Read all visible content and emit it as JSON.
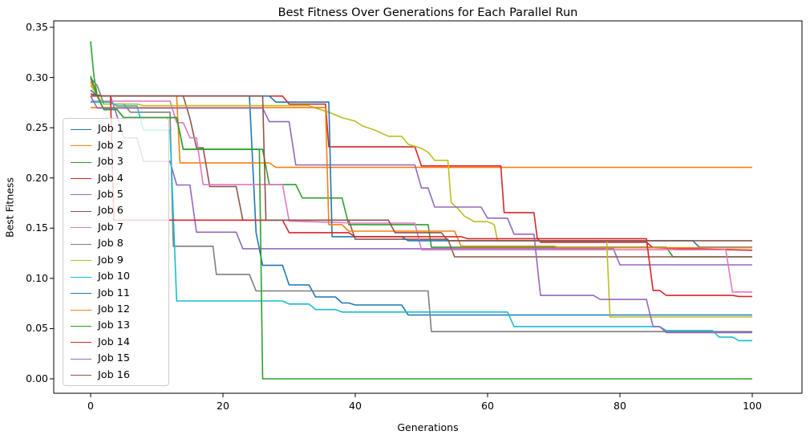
{
  "figure": {
    "title": "Best Fitness Over Generations for Each Parallel Run",
    "xlabel": "Generations",
    "ylabel": "Best Fitness"
  },
  "chart_data": {
    "type": "line",
    "title": "Best Fitness Over Generations for Each Parallel Run",
    "xlabel": "Generations",
    "ylabel": "Best Fitness",
    "xlim": [
      -5.6,
      107.6
    ],
    "ylim": [
      -0.0145,
      0.3565
    ],
    "xticks": [
      0,
      20,
      40,
      60,
      80,
      100
    ],
    "yticks": [
      0.0,
      0.05,
      0.1,
      0.15,
      0.2,
      0.25,
      0.3,
      0.35
    ],
    "ytick_labels": [
      "0.00",
      "0.05",
      "0.10",
      "0.15",
      "0.20",
      "0.25",
      "0.30",
      "0.35"
    ],
    "grid": false,
    "legend_position": "center left",
    "series": [
      {
        "name": "Job 1",
        "color": "#1f77b4",
        "points": [
          [
            0,
            0.2995
          ],
          [
            1,
            0.2815
          ],
          [
            24,
            0.2815
          ],
          [
            25,
            0.1455
          ],
          [
            26,
            0.113
          ],
          [
            29,
            0.113
          ],
          [
            30,
            0.0935
          ],
          [
            33,
            0.0935
          ],
          [
            34,
            0.0815
          ],
          [
            37,
            0.0815
          ],
          [
            38,
            0.0755
          ],
          [
            39,
            0.0755
          ],
          [
            40,
            0.0735
          ],
          [
            47,
            0.0735
          ],
          [
            48,
            0.0635
          ],
          [
            100,
            0.0635
          ]
        ]
      },
      {
        "name": "Job 2",
        "color": "#ff7f0e",
        "points": [
          [
            0,
            0.2958
          ],
          [
            1,
            0.2815
          ],
          [
            13,
            0.2815
          ],
          [
            13.5,
            0.215
          ],
          [
            27,
            0.215
          ],
          [
            28,
            0.2105
          ],
          [
            100,
            0.2105
          ]
        ]
      },
      {
        "name": "Job 3",
        "color": "#2ca02c",
        "points": [
          [
            0,
            0.336
          ],
          [
            0.5,
            0.3014
          ],
          [
            1,
            0.2815
          ],
          [
            2,
            0.268
          ],
          [
            4,
            0.268
          ],
          [
            5,
            0.26
          ],
          [
            13,
            0.26
          ],
          [
            14,
            0.2285
          ],
          [
            26,
            0.2285
          ],
          [
            27,
            0.1935
          ],
          [
            31,
            0.1935
          ],
          [
            32,
            0.18
          ],
          [
            38,
            0.18
          ],
          [
            39,
            0.1535
          ],
          [
            51,
            0.1535
          ],
          [
            51.5,
            0.131
          ],
          [
            87,
            0.131
          ],
          [
            88,
            0.1215
          ],
          [
            100,
            0.1215
          ]
        ]
      },
      {
        "name": "Job 4",
        "color": "#d62728",
        "points": [
          [
            0,
            0.2835
          ],
          [
            2,
            0.2815
          ],
          [
            29,
            0.2815
          ],
          [
            30,
            0.2735
          ],
          [
            35.5,
            0.2735
          ],
          [
            36,
            0.231
          ],
          [
            49,
            0.231
          ],
          [
            50,
            0.212
          ],
          [
            62,
            0.212
          ],
          [
            62.5,
            0.1655
          ],
          [
            67,
            0.1655
          ],
          [
            67.5,
            0.14
          ],
          [
            68,
            0.136
          ],
          [
            84,
            0.136
          ],
          [
            85,
            0.1305
          ],
          [
            90,
            0.1295
          ],
          [
            100,
            0.128
          ]
        ]
      },
      {
        "name": "Job 5",
        "color": "#9467bd",
        "points": [
          [
            0,
            0.2815
          ],
          [
            3,
            0.2815
          ],
          [
            4,
            0.2615
          ],
          [
            5,
            0.24
          ],
          [
            7,
            0.24
          ],
          [
            8,
            0.2165
          ],
          [
            12,
            0.2165
          ],
          [
            13,
            0.193
          ],
          [
            15,
            0.193
          ],
          [
            16,
            0.146
          ],
          [
            22,
            0.146
          ],
          [
            23,
            0.1295
          ],
          [
            79,
            0.1295
          ],
          [
            80,
            0.1135
          ],
          [
            100,
            0.1135
          ]
        ]
      },
      {
        "name": "Job 6",
        "color": "#8c564b",
        "points": [
          [
            0,
            0.2815
          ],
          [
            14,
            0.2815
          ],
          [
            15,
            0.2595
          ],
          [
            16,
            0.23
          ],
          [
            17,
            0.23
          ],
          [
            18,
            0.1915
          ],
          [
            22,
            0.1915
          ],
          [
            23,
            0.158
          ],
          [
            39,
            0.158
          ],
          [
            40,
            0.139
          ],
          [
            54,
            0.139
          ],
          [
            55,
            0.1215
          ],
          [
            100,
            0.1215
          ]
        ]
      },
      {
        "name": "Job 7",
        "color": "#e377c2",
        "points": [
          [
            0,
            0.2765
          ],
          [
            12,
            0.2765
          ],
          [
            13,
            0.255
          ],
          [
            14,
            0.255
          ],
          [
            15,
            0.24
          ],
          [
            16,
            0.24
          ],
          [
            17,
            0.1935
          ],
          [
            29,
            0.1935
          ],
          [
            30,
            0.157
          ],
          [
            40,
            0.155
          ],
          [
            49,
            0.155
          ],
          [
            50,
            0.1285
          ],
          [
            96,
            0.1285
          ],
          [
            97,
            0.0865
          ],
          [
            100,
            0.0865
          ]
        ]
      },
      {
        "name": "Job 8",
        "color": "#7f7f7f",
        "points": [
          [
            0,
            0.2995
          ],
          [
            1,
            0.2918
          ],
          [
            2,
            0.2735
          ],
          [
            5,
            0.2735
          ],
          [
            6,
            0.2655
          ],
          [
            12,
            0.2655
          ],
          [
            12.5,
            0.132
          ],
          [
            18.5,
            0.132
          ],
          [
            19,
            0.104
          ],
          [
            24,
            0.104
          ],
          [
            25,
            0.0875
          ],
          [
            51,
            0.0875
          ],
          [
            51.5,
            0.047
          ],
          [
            100,
            0.047
          ]
        ]
      },
      {
        "name": "Job 9",
        "color": "#bcbd22",
        "points": [
          [
            0,
            0.2925
          ],
          [
            1,
            0.2815
          ],
          [
            2,
            0.2735
          ],
          [
            7,
            0.2735
          ],
          [
            8,
            0.272
          ],
          [
            33,
            0.272
          ],
          [
            34,
            0.2695
          ],
          [
            36,
            0.2655
          ],
          [
            38,
            0.26
          ],
          [
            40,
            0.2565
          ],
          [
            41,
            0.252
          ],
          [
            43,
            0.2475
          ],
          [
            45,
            0.2415
          ],
          [
            47,
            0.2415
          ],
          [
            48,
            0.2335
          ],
          [
            50,
            0.2295
          ],
          [
            51,
            0.2255
          ],
          [
            52,
            0.2175
          ],
          [
            54,
            0.2175
          ],
          [
            54.5,
            0.1755
          ],
          [
            55.5,
            0.1695
          ],
          [
            56.5,
            0.162
          ],
          [
            58,
            0.1565
          ],
          [
            60,
            0.1565
          ],
          [
            61,
            0.1535
          ],
          [
            61.5,
            0.1375
          ],
          [
            78,
            0.1375
          ],
          [
            78.5,
            0.0615
          ],
          [
            100,
            0.0615
          ]
        ]
      },
      {
        "name": "Job 10",
        "color": "#17becf",
        "points": [
          [
            0,
            0.2755
          ],
          [
            3,
            0.2755
          ],
          [
            4,
            0.2718
          ],
          [
            7,
            0.2718
          ],
          [
            8,
            0.2475
          ],
          [
            12,
            0.2475
          ],
          [
            13,
            0.0775
          ],
          [
            29,
            0.0775
          ],
          [
            30,
            0.0745
          ],
          [
            33,
            0.0745
          ],
          [
            34,
            0.069
          ],
          [
            37,
            0.069
          ],
          [
            38,
            0.0665
          ],
          [
            63,
            0.0665
          ],
          [
            64,
            0.052
          ],
          [
            86,
            0.052
          ],
          [
            87,
            0.048
          ],
          [
            94,
            0.048
          ],
          [
            95,
            0.0415
          ],
          [
            97,
            0.0415
          ],
          [
            98,
            0.038
          ],
          [
            100,
            0.038
          ]
        ]
      },
      {
        "name": "Job 11",
        "color": "#1f77b4",
        "points": [
          [
            0,
            0.2875
          ],
          [
            1,
            0.2815
          ],
          [
            27,
            0.2815
          ],
          [
            28,
            0.2755
          ],
          [
            36,
            0.2755
          ],
          [
            36.5,
            0.1415
          ],
          [
            47,
            0.1415
          ],
          [
            48,
            0.1375
          ],
          [
            91,
            0.1375
          ],
          [
            92,
            0.131
          ],
          [
            100,
            0.131
          ]
        ]
      },
      {
        "name": "Job 12",
        "color": "#ff7f0e",
        "points": [
          [
            0,
            0.27
          ],
          [
            35.5,
            0.27
          ],
          [
            36,
            0.1535
          ],
          [
            38,
            0.1535
          ],
          [
            39,
            0.147
          ],
          [
            55,
            0.147
          ],
          [
            56,
            0.132
          ],
          [
            70,
            0.132
          ],
          [
            71,
            0.1305
          ],
          [
            100,
            0.1305
          ]
        ]
      },
      {
        "name": "Job 13",
        "color": "#2ca02c",
        "points": [
          [
            0,
            0.3014
          ],
          [
            1,
            0.2815
          ],
          [
            2,
            0.268
          ],
          [
            4,
            0.268
          ],
          [
            5,
            0.26
          ],
          [
            13,
            0.26
          ],
          [
            14,
            0.2285
          ],
          [
            25.5,
            0.2285
          ],
          [
            26,
            0.0
          ],
          [
            100,
            0.0
          ]
        ]
      },
      {
        "name": "Job 14",
        "color": "#d62728",
        "points": [
          [
            0,
            0.2815
          ],
          [
            3,
            0.2815
          ],
          [
            3.5,
            0.158
          ],
          [
            29,
            0.158
          ],
          [
            30,
            0.1455
          ],
          [
            39,
            0.1455
          ],
          [
            40,
            0.1415
          ],
          [
            56,
            0.1415
          ],
          [
            57,
            0.1395
          ],
          [
            84,
            0.1395
          ],
          [
            85,
            0.088
          ],
          [
            86,
            0.088
          ],
          [
            87,
            0.083
          ],
          [
            97,
            0.083
          ],
          [
            98,
            0.082
          ],
          [
            100,
            0.082
          ]
        ]
      },
      {
        "name": "Job 15",
        "color": "#9467bd",
        "points": [
          [
            0,
            0.2815
          ],
          [
            1,
            0.2695
          ],
          [
            26,
            0.2695
          ],
          [
            27,
            0.256
          ],
          [
            30,
            0.256
          ],
          [
            31,
            0.213
          ],
          [
            49,
            0.213
          ],
          [
            50,
            0.19
          ],
          [
            51,
            0.19
          ],
          [
            52,
            0.171
          ],
          [
            59,
            0.171
          ],
          [
            60,
            0.16
          ],
          [
            63,
            0.16
          ],
          [
            64,
            0.144
          ],
          [
            67,
            0.144
          ],
          [
            68,
            0.083
          ],
          [
            76,
            0.083
          ],
          [
            77,
            0.079
          ],
          [
            84,
            0.079
          ],
          [
            85,
            0.052
          ],
          [
            86,
            0.052
          ],
          [
            87,
            0.046
          ],
          [
            100,
            0.046
          ]
        ]
      },
      {
        "name": "Job 16",
        "color": "#8c564b",
        "points": [
          [
            0,
            0.2815
          ],
          [
            26,
            0.2815
          ],
          [
            26.5,
            0.158
          ],
          [
            45,
            0.158
          ],
          [
            46,
            0.1455
          ],
          [
            53,
            0.1455
          ],
          [
            54,
            0.1375
          ],
          [
            100,
            0.1375
          ]
        ]
      }
    ]
  }
}
